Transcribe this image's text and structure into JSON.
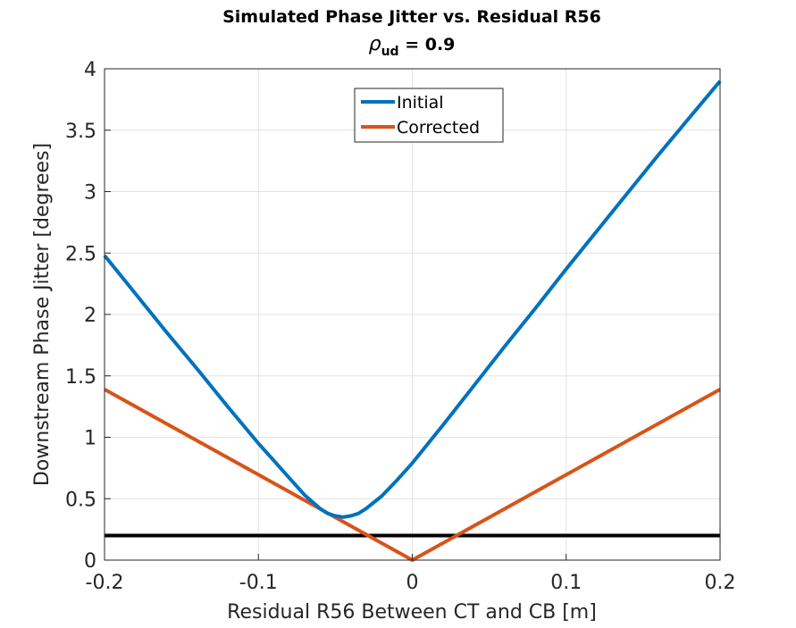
{
  "chart_data": {
    "type": "line",
    "title": "Simulated Phase Jitter vs. Residual R56",
    "subtitle_symbol": "ρ",
    "subtitle_sub": "ud",
    "subtitle_rest": " = 0.9",
    "xlabel": "Residual R56 Between CT and CB [m]",
    "ylabel": "Downstream Phase Jitter [degrees]",
    "xlim": [
      -0.2,
      0.2
    ],
    "ylim": [
      0,
      4
    ],
    "xticks": [
      -0.2,
      -0.1,
      0,
      0.1,
      0.2
    ],
    "xtick_labels": [
      "-0.2",
      "-0.1",
      "0",
      "0.1",
      "0.2"
    ],
    "yticks": [
      0,
      0.5,
      1,
      1.5,
      2,
      2.5,
      3,
      3.5,
      4
    ],
    "ytick_labels": [
      "0",
      "0.5",
      "1",
      "1.5",
      "2",
      "2.5",
      "3",
      "3.5",
      "4"
    ],
    "grid": true,
    "legend_position": "top-center",
    "series": [
      {
        "name": "Initial",
        "color": "#0072BD",
        "x": [
          -0.2,
          -0.18,
          -0.16,
          -0.14,
          -0.12,
          -0.1,
          -0.09,
          -0.08,
          -0.07,
          -0.06,
          -0.055,
          -0.05,
          -0.045,
          -0.04,
          -0.035,
          -0.03,
          -0.02,
          -0.01,
          0,
          0.02,
          0.04,
          0.06,
          0.08,
          0.1,
          0.12,
          0.14,
          0.16,
          0.18,
          0.2
        ],
        "y": [
          2.48,
          2.17,
          1.86,
          1.56,
          1.25,
          0.95,
          0.81,
          0.67,
          0.53,
          0.42,
          0.38,
          0.36,
          0.35,
          0.36,
          0.38,
          0.42,
          0.52,
          0.65,
          0.79,
          1.1,
          1.42,
          1.74,
          2.05,
          2.37,
          2.68,
          2.99,
          3.3,
          3.6,
          3.9
        ]
      },
      {
        "name": "Corrected",
        "color": "#D95319",
        "x": [
          -0.2,
          -0.1,
          0,
          0.1,
          0.2
        ],
        "y": [
          1.39,
          0.695,
          0,
          0.695,
          1.39
        ]
      },
      {
        "color": "#000000",
        "x": [
          -0.2,
          0.2
        ],
        "y": [
          0.2,
          0.2
        ]
      }
    ]
  }
}
